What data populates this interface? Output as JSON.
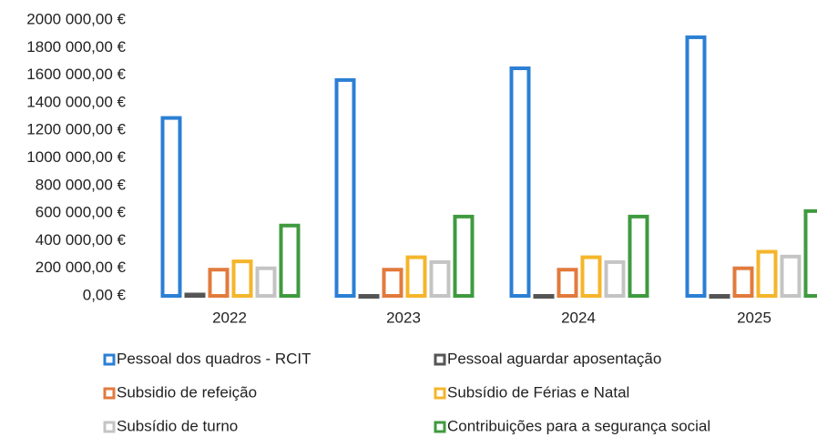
{
  "chart_data": {
    "type": "bar",
    "categories": [
      "2022",
      "2023",
      "2024",
      "2025"
    ],
    "series": [
      {
        "name": "Pessoal dos quadros - RCIT",
        "color": "#2b7fd4",
        "values": [
          1290000,
          1565000,
          1650000,
          1875000
        ]
      },
      {
        "name": "Pessoal aguardar aposentação",
        "color": "#555555",
        "values": [
          10000,
          0,
          0,
          0
        ]
      },
      {
        "name": "Subsidio de refeição",
        "color": "#e27a3c",
        "values": [
          190000,
          190000,
          190000,
          200000
        ]
      },
      {
        "name": "Subsídio de Férias e Natal",
        "color": "#f5b52a",
        "values": [
          250000,
          280000,
          280000,
          320000
        ]
      },
      {
        "name": "Subsídio de turno",
        "color": "#c4c4c4",
        "values": [
          200000,
          245000,
          245000,
          285000
        ]
      },
      {
        "name": "Contribuições para a segurança social",
        "color": "#3f9a3f",
        "values": [
          510000,
          575000,
          575000,
          615000
        ]
      }
    ],
    "ylim": [
      0,
      2000000
    ],
    "yticks": [
      {
        "value": 0,
        "label": "0,00 €"
      },
      {
        "value": 200000,
        "label": "200 000,00 €"
      },
      {
        "value": 400000,
        "label": "400 000,00 €"
      },
      {
        "value": 600000,
        "label": "600 000,00 €"
      },
      {
        "value": 800000,
        "label": "800 000,00 €"
      },
      {
        "value": 1000000,
        "label": "1000 000,00 €"
      },
      {
        "value": 1200000,
        "label": "1200 000,00 €"
      },
      {
        "value": 1400000,
        "label": "1400 000,00 €"
      },
      {
        "value": 1600000,
        "label": "1600 000,00 €"
      },
      {
        "value": 1800000,
        "label": "1800 000,00 €"
      },
      {
        "value": 2000000,
        "label": "2000 000,00 €"
      }
    ],
    "grid": false,
    "legend": "bottom"
  }
}
